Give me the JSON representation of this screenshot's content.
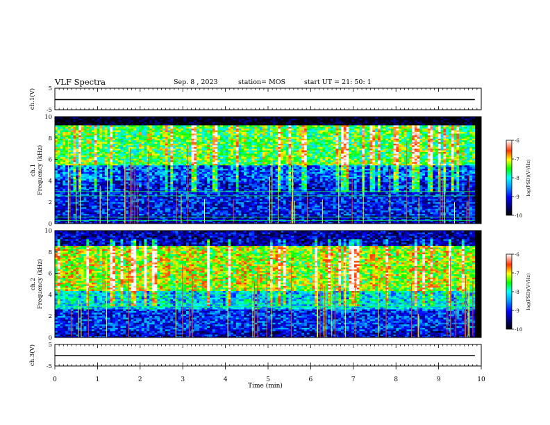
{
  "header": {
    "title": "VLF Spectra",
    "date": "Sep. 8 , 2023",
    "station": "station= MOS",
    "start": "start  UT =  21: 50: 1"
  },
  "colors": {
    "colormap": [
      "#000000",
      "#00007a",
      "#0000ff",
      "#0099ff",
      "#00ffff",
      "#00ff00",
      "#ffff00",
      "#ff3300",
      "#ffffff"
    ]
  },
  "chart_data": [
    {
      "type": "line",
      "panel": "ch.1 voltage",
      "ylabel": "ch.1(V)",
      "ylim": [
        -5,
        5
      ],
      "yticks": [
        "5",
        "-5"
      ],
      "series": [
        {
          "x": [
            0,
            9.85
          ],
          "values": [
            -0.3,
            -0.3
          ]
        }
      ]
    },
    {
      "type": "heatmap",
      "panel": "ch.1 spectrogram",
      "ylabel": "ch.1 Frequency (kHz)",
      "ylim": [
        0,
        10
      ],
      "yticks": [
        "0",
        "2",
        "4",
        "6",
        "8",
        "10"
      ],
      "xlim": [
        0,
        9.85
      ],
      "colorbar": {
        "label": "log(PSD)(V²/Hz)",
        "range": [
          -10,
          -6
        ],
        "ticks": [
          "-6",
          "-7",
          "-8",
          "-9",
          "-10"
        ]
      },
      "bands": [
        {
          "freq_khz": [
            0,
            0.8
          ],
          "level": -9.2
        },
        {
          "freq_khz": [
            0.8,
            4.0
          ],
          "level": -9.0
        },
        {
          "freq_khz": [
            4.0,
            5.5
          ],
          "level": -8.7
        },
        {
          "freq_khz": [
            5.5,
            9.2
          ],
          "level": -7.5
        },
        {
          "freq_khz": [
            9.2,
            10
          ],
          "level": -10
        }
      ],
      "tones_khz": [
        0.3,
        0.6,
        2.6,
        3.0
      ]
    },
    {
      "type": "heatmap",
      "panel": "ch.2 spectrogram",
      "ylabel": "ch.2 Frequency (kHz)",
      "ylim": [
        0,
        10
      ],
      "yticks": [
        "0",
        "2",
        "4",
        "6",
        "8",
        "10"
      ],
      "xlim": [
        0,
        9.85
      ],
      "colorbar": {
        "label": "log(PSD)(V²/Hz)",
        "range": [
          -10,
          -6
        ],
        "ticks": [
          "-6",
          "-7",
          "-8",
          "-9",
          "-10"
        ]
      },
      "bands": [
        {
          "freq_khz": [
            0,
            0.6
          ],
          "level": -9.2
        },
        {
          "freq_khz": [
            0.6,
            2.6
          ],
          "level": -8.9
        },
        {
          "freq_khz": [
            2.6,
            4.4
          ],
          "level": -8.2
        },
        {
          "freq_khz": [
            4.4,
            8.6
          ],
          "level": -7.2
        },
        {
          "freq_khz": [
            8.6,
            10
          ],
          "level": -9.3
        }
      ],
      "tones_khz": [
        2.9,
        3.2
      ]
    },
    {
      "type": "line",
      "panel": "ch.3 voltage",
      "ylabel": "ch.3(V)",
      "ylim": [
        -5,
        5
      ],
      "yticks": [
        "5",
        "-5"
      ],
      "series": [
        {
          "x": [
            0,
            9.85
          ],
          "values": [
            -0.2,
            -0.2
          ]
        }
      ]
    }
  ],
  "xaxis": {
    "label": "Time (min)",
    "ticks": [
      "0",
      "1",
      "2",
      "3",
      "4",
      "5",
      "6",
      "7",
      "8",
      "9",
      "10"
    ],
    "xlim": [
      0,
      10
    ]
  }
}
